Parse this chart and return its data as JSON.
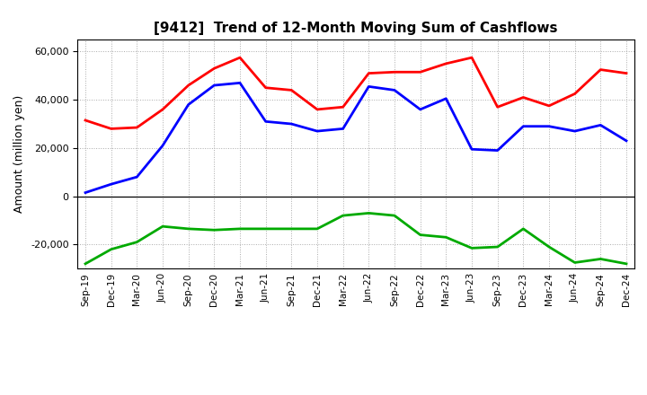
{
  "title": "[9412]  Trend of 12-Month Moving Sum of Cashflows",
  "ylabel": "Amount (million yen)",
  "ylim": [
    -30000,
    65000
  ],
  "yticks": [
    -20000,
    0,
    20000,
    40000,
    60000
  ],
  "x_labels": [
    "Sep-19",
    "Dec-19",
    "Mar-20",
    "Jun-20",
    "Sep-20",
    "Dec-20",
    "Mar-21",
    "Jun-21",
    "Sep-21",
    "Dec-21",
    "Mar-22",
    "Jun-22",
    "Sep-22",
    "Dec-22",
    "Mar-23",
    "Jun-23",
    "Sep-23",
    "Dec-23",
    "Mar-24",
    "Jun-24",
    "Sep-24",
    "Dec-24"
  ],
  "operating": [
    31500,
    28000,
    28500,
    36000,
    46000,
    53000,
    57500,
    45000,
    44000,
    36000,
    37000,
    51000,
    51500,
    51500,
    55000,
    57500,
    37000,
    41000,
    37500,
    42500,
    52500,
    51000
  ],
  "investing": [
    -28000,
    -22000,
    -19000,
    -12500,
    -13500,
    -14000,
    -13500,
    -13500,
    -13500,
    -13500,
    -8000,
    -7000,
    -8000,
    -16000,
    -17000,
    -21500,
    -21000,
    -13500,
    -21000,
    -27500,
    -26000,
    -28000
  ],
  "free": [
    1500,
    5000,
    8000,
    21000,
    38000,
    46000,
    47000,
    31000,
    30000,
    27000,
    28000,
    45500,
    44000,
    36000,
    40500,
    19500,
    19000,
    29000,
    29000,
    27000,
    29500,
    23000
  ],
  "op_color": "#FF0000",
  "inv_color": "#00AA00",
  "free_color": "#0000FF",
  "bg_color": "#FFFFFF",
  "plot_bg_color": "#FFFFFF",
  "grid_color": "#AAAAAA",
  "line_width": 2.0
}
